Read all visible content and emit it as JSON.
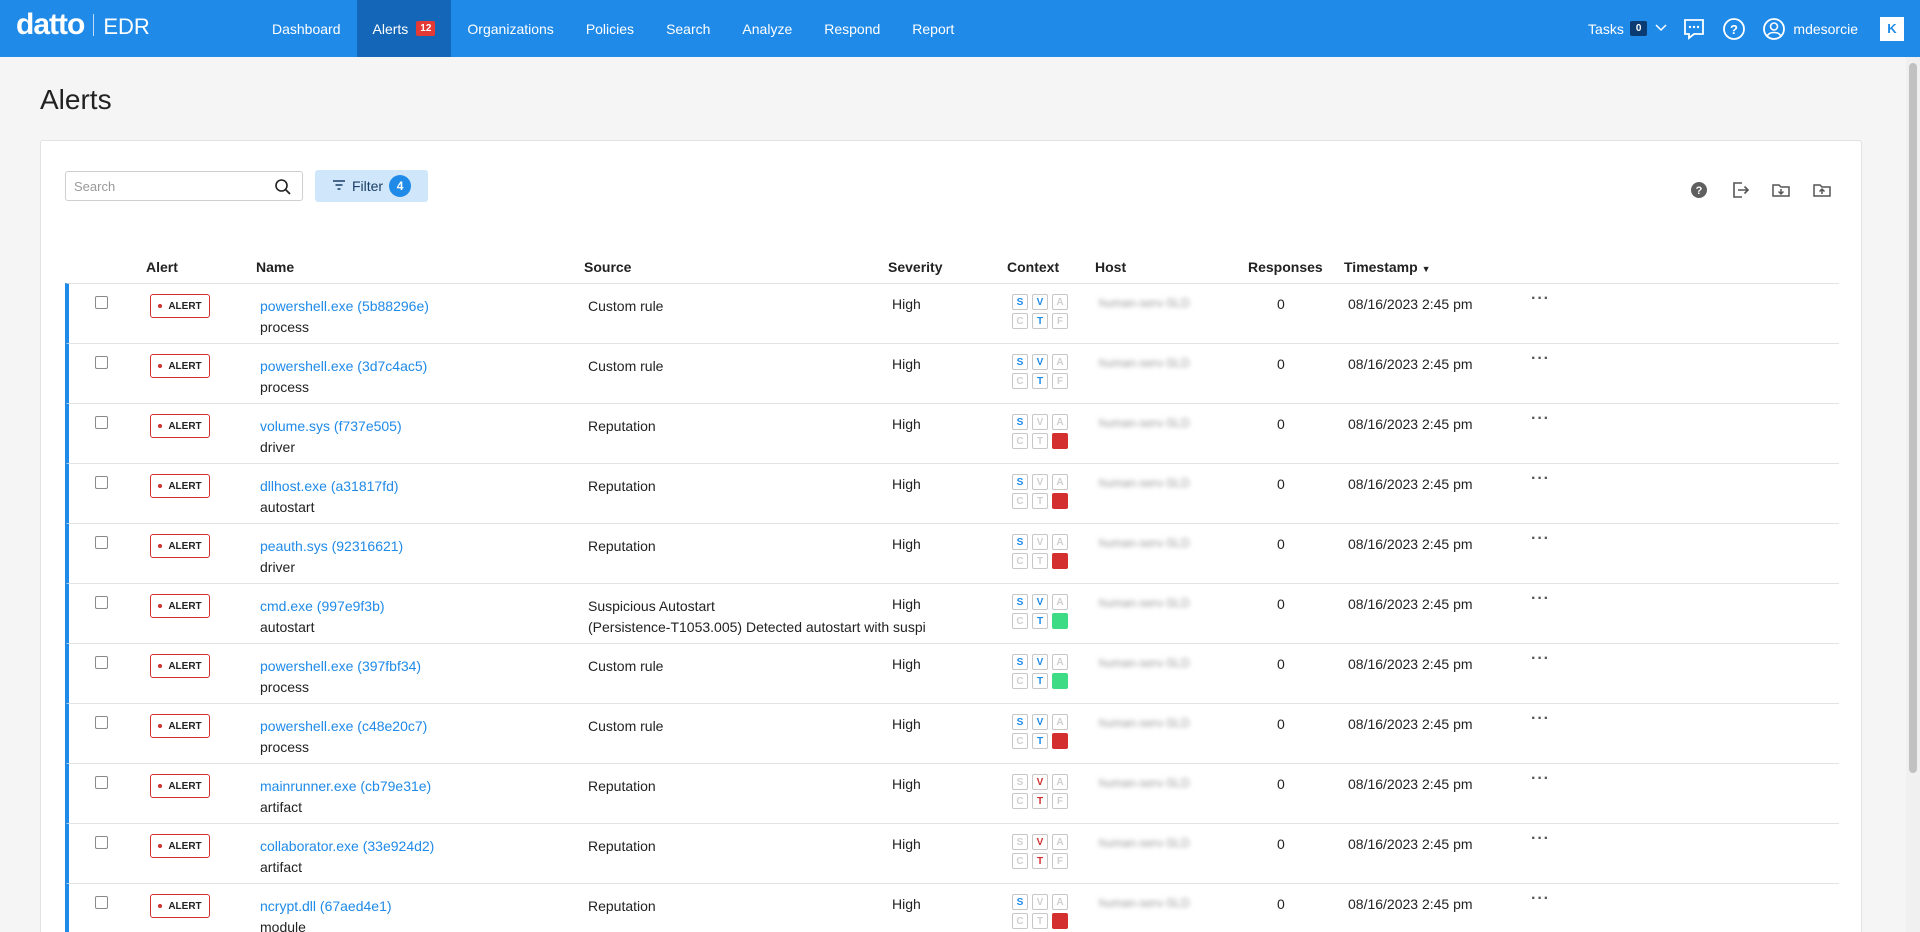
{
  "brand": {
    "logo": "datto",
    "product": "EDR"
  },
  "nav": {
    "items": [
      {
        "label": "Dashboard",
        "active": false
      },
      {
        "label": "Alerts",
        "active": true,
        "badge": "12"
      },
      {
        "label": "Organizations",
        "active": false
      },
      {
        "label": "Policies",
        "active": false
      },
      {
        "label": "Search",
        "active": false
      },
      {
        "label": "Analyze",
        "active": false
      },
      {
        "label": "Respond",
        "active": false
      },
      {
        "label": "Report",
        "active": false
      }
    ],
    "tasks_label": "Tasks",
    "tasks_count": "0",
    "username": "mdesorcie",
    "brand_mark": "K"
  },
  "page": {
    "title": "Alerts"
  },
  "toolbar": {
    "search_placeholder": "Search",
    "filter_label": "Filter",
    "filter_count": "4"
  },
  "table": {
    "headers": {
      "alert": "Alert",
      "name": "Name",
      "source": "Source",
      "severity": "Severity",
      "context": "Context",
      "host": "Host",
      "responses": "Responses",
      "timestamp": "Timestamp"
    },
    "rows": [
      {
        "tag": "ALERT",
        "name": "powershell.exe (5b88296e)",
        "type": "process",
        "source": "Custom rule",
        "source2": "",
        "severity": "High",
        "ctx": [
          "S:b",
          "V:b",
          "A:g",
          "C:g",
          "T:b",
          "F:g"
        ],
        "host": "human-serv-SLD",
        "responses": "0",
        "timestamp": "08/16/2023 2:45 pm"
      },
      {
        "tag": "ALERT",
        "name": "powershell.exe (3d7c4ac5)",
        "type": "process",
        "source": "Custom rule",
        "source2": "",
        "severity": "High",
        "ctx": [
          "S:b",
          "V:b",
          "A:g",
          "C:g",
          "T:b",
          "F:g"
        ],
        "host": "human-serv-SLD",
        "responses": "0",
        "timestamp": "08/16/2023 2:45 pm"
      },
      {
        "tag": "ALERT",
        "name": "volume.sys (f737e505)",
        "type": "driver",
        "source": "Reputation",
        "source2": "",
        "severity": "High",
        "ctx": [
          "S:b",
          "V:g",
          "A:g",
          "C:g",
          "T:g",
          "F:red"
        ],
        "host": "human-serv-SLD",
        "responses": "0",
        "timestamp": "08/16/2023 2:45 pm"
      },
      {
        "tag": "ALERT",
        "name": "dllhost.exe (a31817fd)",
        "type": "autostart",
        "source": "Reputation",
        "source2": "",
        "severity": "High",
        "ctx": [
          "S:b",
          "V:g",
          "A:g",
          "C:g",
          "T:g",
          "F:red"
        ],
        "host": "human-serv-SLD",
        "responses": "0",
        "timestamp": "08/16/2023 2:45 pm"
      },
      {
        "tag": "ALERT",
        "name": "peauth.sys (92316621)",
        "type": "driver",
        "source": "Reputation",
        "source2": "",
        "severity": "High",
        "ctx": [
          "S:b",
          "V:g",
          "A:g",
          "C:g",
          "T:g",
          "F:red"
        ],
        "host": "human-serv-SLD",
        "responses": "0",
        "timestamp": "08/16/2023 2:45 pm"
      },
      {
        "tag": "ALERT",
        "name": "cmd.exe (997e9f3b)",
        "type": "autostart",
        "source": "Suspicious Autostart",
        "source2": "(Persistence-T1053.005) Detected autostart with suspi",
        "severity": "High",
        "ctx": [
          "S:b",
          "V:b",
          "A:g",
          "C:g",
          "T:b",
          "F:green"
        ],
        "host": "human-serv-SLD",
        "responses": "0",
        "timestamp": "08/16/2023 2:45 pm"
      },
      {
        "tag": "ALERT",
        "name": "powershell.exe (397fbf34)",
        "type": "process",
        "source": "Custom rule",
        "source2": "",
        "severity": "High",
        "ctx": [
          "S:b",
          "V:b",
          "A:g",
          "C:g",
          "T:b",
          "F:green"
        ],
        "host": "human-serv-SLD",
        "responses": "0",
        "timestamp": "08/16/2023 2:45 pm"
      },
      {
        "tag": "ALERT",
        "name": "powershell.exe (c48e20c7)",
        "type": "process",
        "source": "Custom rule",
        "source2": "",
        "severity": "High",
        "ctx": [
          "S:b",
          "V:b",
          "A:g",
          "C:g",
          "T:b",
          "F:red"
        ],
        "host": "human-serv-SLD",
        "responses": "0",
        "timestamp": "08/16/2023 2:45 pm"
      },
      {
        "tag": "ALERT",
        "name": "mainrunner.exe (cb79e31e)",
        "type": "artifact",
        "source": "Reputation",
        "source2": "",
        "severity": "High",
        "ctx": [
          "S:g",
          "V:r",
          "A:g",
          "C:g",
          "T:r",
          "F:g"
        ],
        "host": "human-serv-SLD",
        "responses": "0",
        "timestamp": "08/16/2023 2:45 pm"
      },
      {
        "tag": "ALERT",
        "name": "collaborator.exe (33e924d2)",
        "type": "artifact",
        "source": "Reputation",
        "source2": "",
        "severity": "High",
        "ctx": [
          "S:g",
          "V:r",
          "A:g",
          "C:g",
          "T:r",
          "F:g"
        ],
        "host": "human-serv-SLD",
        "responses": "0",
        "timestamp": "08/16/2023 2:45 pm"
      },
      {
        "tag": "ALERT",
        "name": "ncrypt.dll (67aed4e1)",
        "type": "module",
        "source": "Reputation",
        "source2": "",
        "severity": "High",
        "ctx": [
          "S:b",
          "V:g",
          "A:g",
          "C:g",
          "T:g",
          "F:red"
        ],
        "host": "human-serv-SLD",
        "responses": "0",
        "timestamp": "08/16/2023 2:45 pm"
      }
    ]
  }
}
